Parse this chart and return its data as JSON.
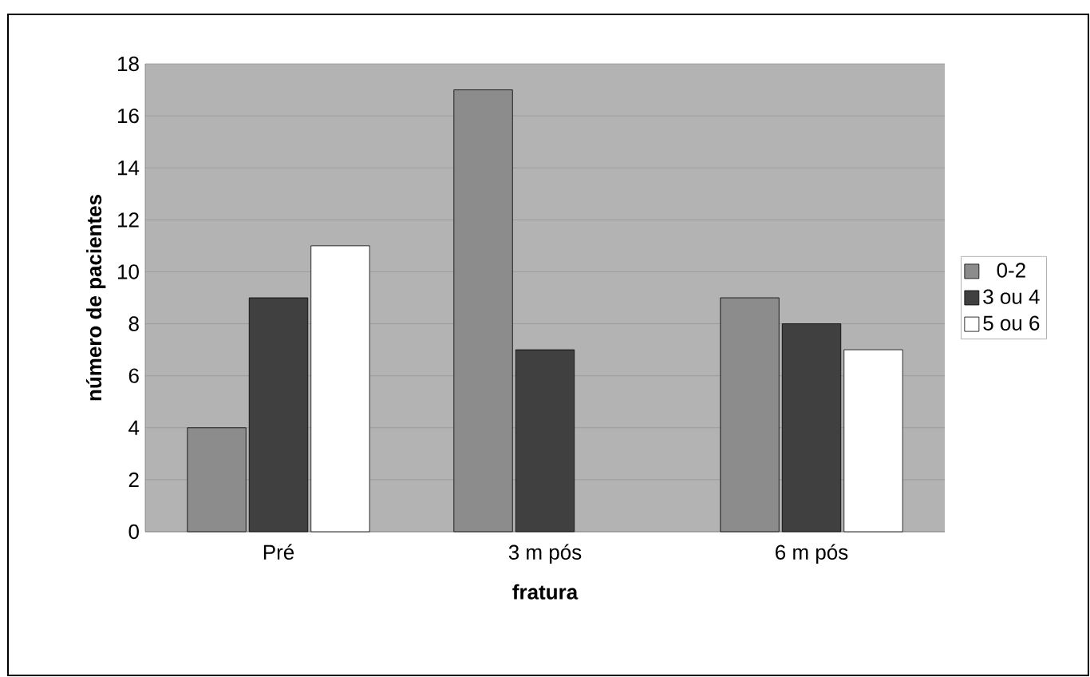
{
  "chart_data": {
    "type": "bar",
    "xlabel": "fratura",
    "ylabel": "número de pacientes",
    "categories": [
      "Pré",
      "3 m pós",
      "6 m pós"
    ],
    "series": [
      {
        "name": "0-2",
        "color": "#8c8c8c",
        "values": [
          4,
          17,
          9
        ]
      },
      {
        "name": "3 ou 4",
        "color": "#404040",
        "values": [
          9,
          7,
          8
        ]
      },
      {
        "name": "5 ou 6",
        "color": "#ffffff",
        "values": [
          11,
          null,
          7
        ]
      }
    ],
    "ylim": [
      0,
      18
    ],
    "yticks": [
      0,
      2,
      4,
      6,
      8,
      10,
      12,
      14,
      16,
      18
    ],
    "grid": "y",
    "legend": "right"
  }
}
